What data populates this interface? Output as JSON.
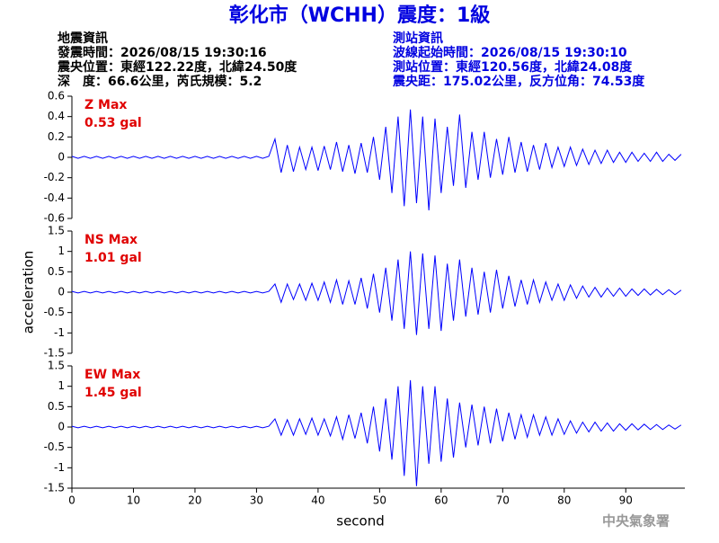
{
  "header": {
    "title": "彰化市（WCHH）震度：1級",
    "left": [
      "地震資訊",
      "發震時間：2026/08/15 19:30:16",
      "震央位置：東經122.22度，北緯24.50度",
      "深　度：66.6公里，芮氏規模：5.2"
    ],
    "right": [
      "測站資訊",
      "波線起始時間：2026/08/15 19:30:10",
      "測站位置：東經120.56度，北緯24.08度",
      "震央距：175.02公里，反方位角：74.53度"
    ]
  },
  "footer": "中央氣象署",
  "chart_data": [
    {
      "type": "line",
      "color": "#0000ff",
      "annotation": [
        "Z Max",
        "0.53 gal"
      ],
      "annotation_color": "#e00000",
      "xlim": [
        0,
        99.6
      ],
      "ylim": [
        -0.6,
        0.6
      ],
      "yticks": [
        0.6,
        0.4,
        0.2,
        0,
        -0.2,
        -0.4,
        -0.6
      ],
      "x": [
        0,
        1,
        2,
        3,
        4,
        5,
        6,
        7,
        8,
        9,
        10,
        11,
        12,
        13,
        14,
        15,
        16,
        17,
        18,
        19,
        20,
        21,
        22,
        23,
        24,
        25,
        26,
        27,
        28,
        29,
        30,
        31,
        32,
        33,
        34,
        35,
        36,
        37,
        38,
        39,
        40,
        41,
        42,
        43,
        44,
        45,
        46,
        47,
        48,
        49,
        50,
        51,
        52,
        53,
        54,
        55,
        56,
        57,
        58,
        59,
        60,
        61,
        62,
        63,
        64,
        65,
        66,
        67,
        68,
        69,
        70,
        71,
        72,
        73,
        74,
        75,
        76,
        77,
        78,
        79,
        80,
        81,
        82,
        83,
        84,
        85,
        86,
        87,
        88,
        89,
        90,
        91,
        92,
        93,
        94,
        95,
        96,
        97,
        98,
        99
      ],
      "values": [
        0.01,
        -0.01,
        0.01,
        -0.01,
        0.01,
        -0.01,
        0.01,
        -0.01,
        0.01,
        -0.01,
        0.01,
        -0.01,
        0.01,
        -0.01,
        0.01,
        -0.01,
        0.01,
        -0.01,
        0.01,
        -0.01,
        0.01,
        -0.01,
        0.01,
        -0.01,
        0.01,
        -0.01,
        0.01,
        -0.01,
        0.01,
        -0.01,
        0.01,
        -0.01,
        0.01,
        0.18,
        -0.15,
        0.12,
        -0.14,
        0.1,
        -0.12,
        0.1,
        -0.13,
        0.11,
        -0.12,
        0.15,
        -0.14,
        0.12,
        -0.16,
        0.14,
        -0.15,
        0.2,
        -0.22,
        0.3,
        -0.35,
        0.4,
        -0.48,
        0.47,
        -0.45,
        0.4,
        -0.52,
        0.38,
        -0.35,
        0.3,
        -0.28,
        0.42,
        -0.3,
        0.25,
        -0.22,
        0.25,
        -0.2,
        0.18,
        -0.17,
        0.2,
        -0.15,
        0.15,
        -0.14,
        0.12,
        -0.12,
        0.14,
        -0.1,
        0.1,
        -0.09,
        0.1,
        -0.08,
        0.08,
        -0.07,
        0.07,
        -0.06,
        0.07,
        -0.05,
        0.05,
        -0.05,
        0.05,
        -0.04,
        0.04,
        -0.04,
        0.05,
        -0.04,
        0.03,
        -0.03,
        0.03
      ]
    },
    {
      "type": "line",
      "color": "#0000ff",
      "annotation": [
        "NS Max",
        "1.01 gal"
      ],
      "annotation_color": "#e00000",
      "ylabel": "acceleration",
      "xlim": [
        0,
        99.6
      ],
      "ylim": [
        -1.5,
        1.5
      ],
      "yticks": [
        1.5,
        1,
        0.5,
        0,
        -0.5,
        -1,
        -1.5
      ],
      "x": [
        0,
        1,
        2,
        3,
        4,
        5,
        6,
        7,
        8,
        9,
        10,
        11,
        12,
        13,
        14,
        15,
        16,
        17,
        18,
        19,
        20,
        21,
        22,
        23,
        24,
        25,
        26,
        27,
        28,
        29,
        30,
        31,
        32,
        33,
        34,
        35,
        36,
        37,
        38,
        39,
        40,
        41,
        42,
        43,
        44,
        45,
        46,
        47,
        48,
        49,
        50,
        51,
        52,
        53,
        54,
        55,
        56,
        57,
        58,
        59,
        60,
        61,
        62,
        63,
        64,
        65,
        66,
        67,
        68,
        69,
        70,
        71,
        72,
        73,
        74,
        75,
        76,
        77,
        78,
        79,
        80,
        81,
        82,
        83,
        84,
        85,
        86,
        87,
        88,
        89,
        90,
        91,
        92,
        93,
        94,
        95,
        96,
        97,
        98,
        99
      ],
      "values": [
        0.02,
        -0.02,
        0.02,
        -0.02,
        0.02,
        -0.02,
        0.02,
        -0.02,
        0.02,
        -0.02,
        0.02,
        -0.02,
        0.02,
        -0.02,
        0.02,
        -0.02,
        0.02,
        -0.02,
        0.02,
        -0.02,
        0.02,
        -0.02,
        0.02,
        -0.02,
        0.02,
        -0.02,
        0.02,
        -0.02,
        0.02,
        -0.02,
        0.02,
        -0.02,
        0.02,
        0.2,
        -0.25,
        0.2,
        -0.18,
        0.2,
        -0.2,
        0.22,
        -0.2,
        0.25,
        -0.25,
        0.3,
        -0.3,
        0.28,
        -0.3,
        0.35,
        -0.4,
        0.45,
        -0.5,
        0.6,
        -0.7,
        0.8,
        -0.9,
        1.0,
        -1.05,
        0.95,
        -0.9,
        0.9,
        -0.95,
        0.7,
        -0.7,
        0.8,
        -0.6,
        0.6,
        -0.55,
        0.5,
        -0.5,
        0.55,
        -0.4,
        0.4,
        -0.35,
        0.3,
        -0.3,
        0.3,
        -0.25,
        0.25,
        -0.2,
        0.2,
        -0.2,
        0.18,
        -0.15,
        0.15,
        -0.12,
        0.12,
        -0.12,
        0.1,
        -0.1,
        0.1,
        -0.1,
        0.08,
        -0.08,
        0.08,
        -0.07,
        0.07,
        -0.06,
        0.06,
        -0.06,
        0.05
      ]
    },
    {
      "type": "line",
      "color": "#0000ff",
      "annotation": [
        "EW Max",
        "1.45 gal"
      ],
      "annotation_color": "#e00000",
      "xlabel": "second",
      "xlim": [
        0,
        99.6
      ],
      "xticks": [
        0,
        10,
        20,
        30,
        40,
        50,
        60,
        70,
        80,
        90
      ],
      "ylim": [
        -1.5,
        1.5
      ],
      "yticks": [
        1.5,
        1,
        0.5,
        0,
        -0.5,
        -1,
        -1.5
      ],
      "x": [
        0,
        1,
        2,
        3,
        4,
        5,
        6,
        7,
        8,
        9,
        10,
        11,
        12,
        13,
        14,
        15,
        16,
        17,
        18,
        19,
        20,
        21,
        22,
        23,
        24,
        25,
        26,
        27,
        28,
        29,
        30,
        31,
        32,
        33,
        34,
        35,
        36,
        37,
        38,
        39,
        40,
        41,
        42,
        43,
        44,
        45,
        46,
        47,
        48,
        49,
        50,
        51,
        52,
        53,
        54,
        55,
        56,
        57,
        58,
        59,
        60,
        61,
        62,
        63,
        64,
        65,
        66,
        67,
        68,
        69,
        70,
        71,
        72,
        73,
        74,
        75,
        76,
        77,
        78,
        79,
        80,
        81,
        82,
        83,
        84,
        85,
        86,
        87,
        88,
        89,
        90,
        91,
        92,
        93,
        94,
        95,
        96,
        97,
        98,
        99
      ],
      "values": [
        0.02,
        -0.02,
        0.02,
        -0.02,
        0.02,
        -0.02,
        0.02,
        -0.02,
        0.02,
        -0.02,
        0.02,
        -0.02,
        0.02,
        -0.02,
        0.02,
        -0.02,
        0.02,
        -0.02,
        0.02,
        -0.02,
        0.02,
        -0.02,
        0.02,
        -0.02,
        0.02,
        -0.02,
        0.02,
        -0.02,
        0.02,
        -0.02,
        0.02,
        -0.02,
        0.02,
        0.2,
        -0.2,
        0.18,
        -0.2,
        0.2,
        -0.18,
        0.22,
        -0.2,
        0.2,
        -0.22,
        0.25,
        -0.3,
        0.3,
        -0.28,
        0.35,
        -0.4,
        0.5,
        -0.6,
        0.7,
        -0.8,
        1.0,
        -1.2,
        1.15,
        -1.45,
        1.0,
        -0.9,
        1.0,
        -0.85,
        0.7,
        -0.75,
        0.6,
        -0.5,
        0.55,
        -0.45,
        0.5,
        -0.4,
        0.45,
        -0.35,
        0.35,
        -0.3,
        0.3,
        -0.25,
        0.3,
        -0.2,
        0.25,
        -0.2,
        0.2,
        -0.18,
        0.15,
        -0.15,
        0.12,
        -0.12,
        0.12,
        -0.1,
        0.1,
        -0.1,
        0.08,
        -0.08,
        0.08,
        -0.07,
        0.07,
        -0.06,
        0.06,
        -0.06,
        0.05,
        -0.05,
        0.05
      ]
    }
  ]
}
